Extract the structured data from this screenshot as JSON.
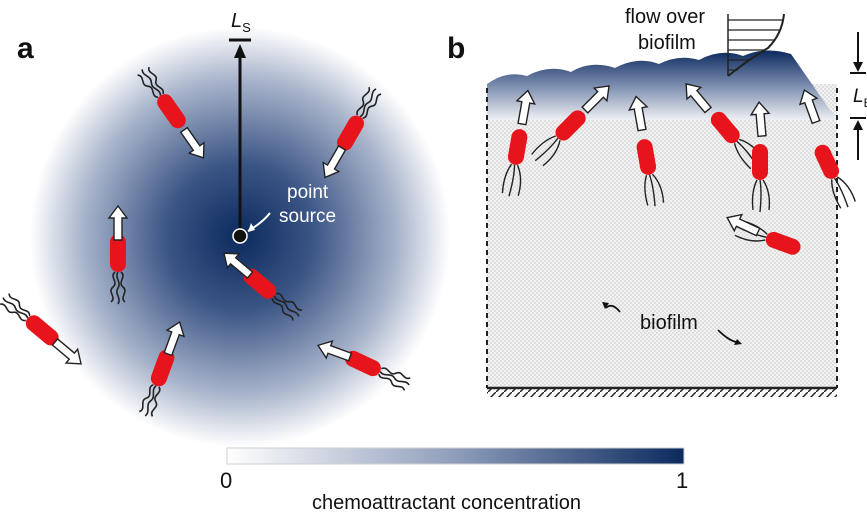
{
  "panels": {
    "a": {
      "letter": "a",
      "source_label_line1": "point",
      "source_label_line2": "source",
      "ls_label_main": "L",
      "ls_label_sub": "S"
    },
    "b": {
      "letter": "b",
      "flow_label_line1": "flow over",
      "flow_label_line2": "biofilm",
      "lb_label_main": "L",
      "lb_label_sub": "B",
      "biofilm_label": "biofilm"
    }
  },
  "colorbar": {
    "min_label": "0",
    "max_label": "1",
    "title": "chemoattractant concentration",
    "color_low": "#ffffff",
    "color_high": "#0c2a5e"
  },
  "colors": {
    "gradient_dark": "#0c2a5e",
    "bacterium_body": "#e8141c",
    "flagella": "#222222",
    "arrow_fill": "#ffffff",
    "biofilm_texture": "#dcdcdc"
  }
}
